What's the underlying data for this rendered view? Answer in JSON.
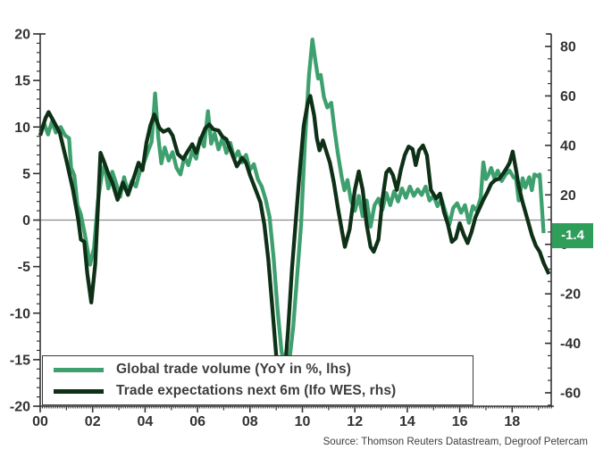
{
  "chart_data": {
    "type": "line",
    "title": "",
    "xlabel": "",
    "ylabel_left": "",
    "ylabel_right": "",
    "grid": "zero-line-only",
    "legend_position": "bottom-left",
    "x_axis": {
      "range": [
        2000,
        2019.5
      ],
      "tick_positions": [
        2000,
        2002,
        2004,
        2006,
        2008,
        2010,
        2012,
        2014,
        2016,
        2018
      ],
      "tick_labels": [
        "00",
        "02",
        "04",
        "06",
        "08",
        "10",
        "12",
        "14",
        "16",
        "18"
      ],
      "minor_tick": "monthly"
    },
    "left_axis": {
      "min": -20,
      "max": 20,
      "minor_step": 1,
      "tick_values": [
        20,
        15,
        10,
        5,
        0,
        -5,
        -10,
        -15,
        -20
      ],
      "tick_labels": [
        "20",
        "15",
        "10",
        "5",
        "0",
        "-5",
        "-10",
        "-15",
        "-20"
      ]
    },
    "right_axis": {
      "min": -60,
      "max": 80,
      "minor_step": 5,
      "tick_values": [
        80,
        60,
        40,
        20,
        0,
        -20,
        -40,
        -60
      ],
      "tick_labels": [
        "80",
        "60",
        "40",
        "20",
        "0",
        "-20",
        "-40",
        "-60"
      ]
    },
    "series": [
      {
        "name": "Global trade volume (YoY in %, lhs)",
        "axis": "left",
        "color": "#3EA06E",
        "points": [
          [
            2000.0,
            9.5
          ],
          [
            2000.15,
            10.4
          ],
          [
            2000.3,
            9.2
          ],
          [
            2000.45,
            10.6
          ],
          [
            2000.6,
            9.4
          ],
          [
            2000.78,
            10.0
          ],
          [
            2000.95,
            9.1
          ],
          [
            2001.1,
            8.8
          ],
          [
            2001.18,
            5.6
          ],
          [
            2001.3,
            4.8
          ],
          [
            2001.42,
            1.6
          ],
          [
            2001.55,
            0.6
          ],
          [
            2001.7,
            -1.5
          ],
          [
            2001.9,
            -4.8
          ],
          [
            2002.05,
            -3.0
          ],
          [
            2002.2,
            2.0
          ],
          [
            2002.35,
            4.9
          ],
          [
            2002.45,
            5.9
          ],
          [
            2002.6,
            3.4
          ],
          [
            2002.75,
            5.2
          ],
          [
            2002.9,
            3.9
          ],
          [
            2003.05,
            2.5
          ],
          [
            2003.2,
            4.6
          ],
          [
            2003.35,
            3.0
          ],
          [
            2003.5,
            4.2
          ],
          [
            2003.65,
            3.6
          ],
          [
            2003.8,
            5.2
          ],
          [
            2003.95,
            6.1
          ],
          [
            2004.1,
            7.3
          ],
          [
            2004.25,
            8.4
          ],
          [
            2004.38,
            13.6
          ],
          [
            2004.5,
            9.0
          ],
          [
            2004.62,
            6.1
          ],
          [
            2004.75,
            7.8
          ],
          [
            2004.9,
            6.4
          ],
          [
            2005.05,
            7.3
          ],
          [
            2005.2,
            5.6
          ],
          [
            2005.35,
            4.9
          ],
          [
            2005.5,
            6.8
          ],
          [
            2005.65,
            5.9
          ],
          [
            2005.8,
            7.4
          ],
          [
            2005.95,
            6.6
          ],
          [
            2006.1,
            8.8
          ],
          [
            2006.25,
            7.9
          ],
          [
            2006.4,
            11.7
          ],
          [
            2006.52,
            8.2
          ],
          [
            2006.65,
            9.3
          ],
          [
            2006.8,
            7.6
          ],
          [
            2006.95,
            8.8
          ],
          [
            2007.1,
            7.2
          ],
          [
            2007.25,
            8.3
          ],
          [
            2007.4,
            6.6
          ],
          [
            2007.55,
            7.4
          ],
          [
            2007.7,
            6.2
          ],
          [
            2007.85,
            7.0
          ],
          [
            2008.0,
            5.4
          ],
          [
            2008.15,
            6.0
          ],
          [
            2008.3,
            4.4
          ],
          [
            2008.45,
            3.6
          ],
          [
            2008.6,
            2.2
          ],
          [
            2008.75,
            0.3
          ],
          [
            2008.9,
            -4.0
          ],
          [
            2009.05,
            -9.5
          ],
          [
            2009.2,
            -14.0
          ],
          [
            2009.35,
            -16.3
          ],
          [
            2009.5,
            -15.2
          ],
          [
            2009.65,
            -11.5
          ],
          [
            2009.8,
            -6.0
          ],
          [
            2009.95,
            -0.5
          ],
          [
            2010.1,
            8.5
          ],
          [
            2010.25,
            15.5
          ],
          [
            2010.38,
            19.4
          ],
          [
            2010.5,
            17.0
          ],
          [
            2010.6,
            15.2
          ],
          [
            2010.7,
            15.6
          ],
          [
            2010.82,
            13.2
          ],
          [
            2010.95,
            12.1
          ],
          [
            2011.1,
            12.6
          ],
          [
            2011.22,
            9.8
          ],
          [
            2011.35,
            7.2
          ],
          [
            2011.5,
            4.6
          ],
          [
            2011.6,
            3.2
          ],
          [
            2011.72,
            4.3
          ],
          [
            2011.85,
            2.1
          ],
          [
            2012.0,
            1.0
          ],
          [
            2012.15,
            2.6
          ],
          [
            2012.3,
            0.4
          ],
          [
            2012.45,
            2.1
          ],
          [
            2012.6,
            -0.7
          ],
          [
            2012.75,
            1.6
          ],
          [
            2012.9,
            2.3
          ],
          [
            2013.05,
            1.1
          ],
          [
            2013.2,
            2.9
          ],
          [
            2013.35,
            1.6
          ],
          [
            2013.5,
            3.1
          ],
          [
            2013.65,
            2.0
          ],
          [
            2013.8,
            3.4
          ],
          [
            2013.95,
            2.4
          ],
          [
            2014.1,
            3.6
          ],
          [
            2014.25,
            2.6
          ],
          [
            2014.4,
            3.3
          ],
          [
            2014.55,
            2.7
          ],
          [
            2014.7,
            3.6
          ],
          [
            2014.85,
            2.1
          ],
          [
            2015.0,
            2.6
          ],
          [
            2015.15,
            1.5
          ],
          [
            2015.3,
            2.3
          ],
          [
            2015.45,
            0.9
          ],
          [
            2015.6,
            -0.5
          ],
          [
            2015.75,
            1.3
          ],
          [
            2015.9,
            1.8
          ],
          [
            2016.05,
            0.8
          ],
          [
            2016.2,
            1.6
          ],
          [
            2016.35,
            -0.3
          ],
          [
            2016.5,
            1.5
          ],
          [
            2016.65,
            1.0
          ],
          [
            2016.8,
            2.4
          ],
          [
            2016.9,
            6.2
          ],
          [
            2017.0,
            4.4
          ],
          [
            2017.1,
            4.9
          ],
          [
            2017.2,
            5.6
          ],
          [
            2017.32,
            4.5
          ],
          [
            2017.45,
            5.3
          ],
          [
            2017.6,
            4.2
          ],
          [
            2017.75,
            4.9
          ],
          [
            2017.9,
            5.3
          ],
          [
            2018.05,
            4.6
          ],
          [
            2018.15,
            4.4
          ],
          [
            2018.25,
            2.1
          ],
          [
            2018.4,
            4.5
          ],
          [
            2018.5,
            3.5
          ],
          [
            2018.65,
            4.6
          ],
          [
            2018.75,
            3.2
          ],
          [
            2018.85,
            4.9
          ],
          [
            2019.0,
            4.7
          ],
          [
            2019.05,
            4.9
          ],
          [
            2019.2,
            -1.4
          ]
        ]
      },
      {
        "name": "Trade expectations next 6m (Ifo WES, rhs)",
        "axis": "right",
        "color": "#0E3016",
        "points": [
          [
            2000.0,
            44
          ],
          [
            2000.2,
            51
          ],
          [
            2000.32,
            53.5
          ],
          [
            2000.5,
            50
          ],
          [
            2000.75,
            45
          ],
          [
            2001.0,
            34
          ],
          [
            2001.25,
            22
          ],
          [
            2001.45,
            10
          ],
          [
            2001.55,
            2
          ],
          [
            2001.68,
            1
          ],
          [
            2001.8,
            -12
          ],
          [
            2001.95,
            -23.5
          ],
          [
            2002.1,
            -8
          ],
          [
            2002.3,
            37
          ],
          [
            2002.45,
            33
          ],
          [
            2002.6,
            28.5
          ],
          [
            2002.75,
            25
          ],
          [
            2002.95,
            18
          ],
          [
            2003.15,
            25
          ],
          [
            2003.35,
            20
          ],
          [
            2003.6,
            28
          ],
          [
            2003.75,
            33
          ],
          [
            2003.9,
            30
          ],
          [
            2004.05,
            41
          ],
          [
            2004.2,
            48
          ],
          [
            2004.35,
            52.5
          ],
          [
            2004.55,
            47
          ],
          [
            2004.7,
            45.5
          ],
          [
            2004.9,
            46.5
          ],
          [
            2005.05,
            44
          ],
          [
            2005.25,
            36.5
          ],
          [
            2005.45,
            34.5
          ],
          [
            2005.65,
            38
          ],
          [
            2005.8,
            40.5
          ],
          [
            2005.95,
            37
          ],
          [
            2006.1,
            42
          ],
          [
            2006.3,
            47
          ],
          [
            2006.45,
            48.5
          ],
          [
            2006.6,
            46.5
          ],
          [
            2006.8,
            46
          ],
          [
            2006.95,
            43.5
          ],
          [
            2007.1,
            42.5
          ],
          [
            2007.3,
            37
          ],
          [
            2007.5,
            31.5
          ],
          [
            2007.7,
            35
          ],
          [
            2007.85,
            33
          ],
          [
            2008.0,
            28
          ],
          [
            2008.2,
            22.5
          ],
          [
            2008.4,
            17
          ],
          [
            2008.55,
            8
          ],
          [
            2008.7,
            -6
          ],
          [
            2008.85,
            -25
          ],
          [
            2009.0,
            -45
          ],
          [
            2009.15,
            -62
          ],
          [
            2009.3,
            -55
          ],
          [
            2009.45,
            -35
          ],
          [
            2009.6,
            -10
          ],
          [
            2009.75,
            10
          ],
          [
            2009.9,
            30
          ],
          [
            2010.05,
            48
          ],
          [
            2010.2,
            57
          ],
          [
            2010.3,
            60
          ],
          [
            2010.45,
            52
          ],
          [
            2010.55,
            43
          ],
          [
            2010.65,
            38
          ],
          [
            2010.78,
            42
          ],
          [
            2010.9,
            38
          ],
          [
            2011.05,
            33
          ],
          [
            2011.2,
            25
          ],
          [
            2011.35,
            15
          ],
          [
            2011.5,
            6
          ],
          [
            2011.62,
            -1
          ],
          [
            2011.8,
            6
          ],
          [
            2012.0,
            22
          ],
          [
            2012.15,
            29.5
          ],
          [
            2012.3,
            22
          ],
          [
            2012.45,
            8
          ],
          [
            2012.6,
            -1
          ],
          [
            2012.72,
            -3
          ],
          [
            2012.9,
            2
          ],
          [
            2013.05,
            18
          ],
          [
            2013.2,
            29
          ],
          [
            2013.32,
            30.5
          ],
          [
            2013.45,
            28
          ],
          [
            2013.6,
            22
          ],
          [
            2013.75,
            30
          ],
          [
            2013.9,
            36
          ],
          [
            2014.05,
            39.5
          ],
          [
            2014.2,
            38.5
          ],
          [
            2014.32,
            32
          ],
          [
            2014.45,
            38
          ],
          [
            2014.6,
            40
          ],
          [
            2014.75,
            36
          ],
          [
            2014.9,
            22
          ],
          [
            2015.1,
            18.5
          ],
          [
            2015.25,
            20.5
          ],
          [
            2015.4,
            13
          ],
          [
            2015.55,
            8
          ],
          [
            2015.7,
            1
          ],
          [
            2015.85,
            2.5
          ],
          [
            2016.0,
            8.5
          ],
          [
            2016.15,
            4
          ],
          [
            2016.3,
            0.5
          ],
          [
            2016.45,
            5
          ],
          [
            2016.6,
            11
          ],
          [
            2016.75,
            14.5
          ],
          [
            2016.9,
            18
          ],
          [
            2017.05,
            21
          ],
          [
            2017.2,
            24.5
          ],
          [
            2017.35,
            26
          ],
          [
            2017.5,
            26.5
          ],
          [
            2017.65,
            28.5
          ],
          [
            2017.8,
            31
          ],
          [
            2017.9,
            33
          ],
          [
            2018.02,
            37.5
          ],
          [
            2018.15,
            30
          ],
          [
            2018.25,
            23.5
          ],
          [
            2018.4,
            17
          ],
          [
            2018.6,
            9.5
          ],
          [
            2018.75,
            3.8
          ],
          [
            2018.9,
            -0.5
          ],
          [
            2019.05,
            -3
          ],
          [
            2019.2,
            -7.5
          ],
          [
            2019.4,
            -12
          ]
        ]
      }
    ],
    "annotation": {
      "label": "-1.4",
      "bg_color": "#2F9E5B",
      "text_color": "#FFFFFF",
      "meaning": "last value of global trade volume series"
    },
    "zero_line_color": "#8c8c8c",
    "axis_color": "#333333",
    "source": "Source: Thomson Reuters Datastream, Degroof Petercam"
  }
}
